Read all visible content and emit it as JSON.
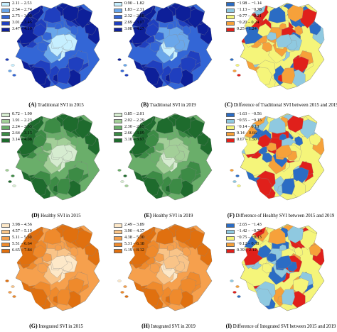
{
  "panels": [
    {
      "letter": "(A)",
      "caption": "Traditional SVI in 2015",
      "scheme": "blue",
      "legend": [
        "2.11 – 2.53",
        "2.54 – 2.74",
        "2.75 – 3.00",
        "3.01 – 3.46",
        "3.47 – 4.19"
      ],
      "colors": [
        "#c6efff",
        "#6aa7ea",
        "#3366d6",
        "#1f3fbf",
        "#0d1f99"
      ]
    },
    {
      "letter": "(B)",
      "caption": "Traditional SVI in 2019",
      "scheme": "blue",
      "legend": [
        "0.90 – 1.82",
        "1.83 – 2.31",
        "2.32 – 2.68",
        "2.69 – 3.07",
        "3.08 – 4.27"
      ],
      "colors": [
        "#c6efff",
        "#6aa7ea",
        "#3366d6",
        "#1f3fbf",
        "#0d1f99"
      ]
    },
    {
      "letter": "(C)",
      "caption": "Difference of Traditional SVI between 2015 and 2019",
      "scheme": "div",
      "legend": [
        "−1.98 – −1.14",
        "−1.13 – −0.78",
        "−0.77 – −0.21",
        "−0.20 – 0.24",
        "0.25 – 1.24"
      ],
      "colors": [
        "#2b6cc4",
        "#8fc9e0",
        "#f5f57a",
        "#f6a13a",
        "#e0201b"
      ]
    },
    {
      "letter": "(D)",
      "caption": "Healthy SVI in 2015",
      "scheme": "green",
      "legend": [
        "0.72 – 1.90",
        "1.91 – 2.23",
        "2.24 – 2.63",
        "2.64 – 3.13",
        "3.14 – 4.08"
      ],
      "colors": [
        "#d6ecd0",
        "#a3cf98",
        "#6aae6a",
        "#3c8b45",
        "#1e6b2d"
      ]
    },
    {
      "letter": "(E)",
      "caption": "Healthy SVI in 2019",
      "scheme": "green",
      "legend": [
        "0.85 – 2.01",
        "2.02 – 2.29",
        "2.30 – 2.65",
        "2.66 – 3.09",
        "3.10 – 3.97"
      ],
      "colors": [
        "#d6ecd0",
        "#a3cf98",
        "#6aae6a",
        "#3c8b45",
        "#1e6b2d"
      ]
    },
    {
      "letter": "(F)",
      "caption": "Difference of Healthy SVI between 2015 and 2019",
      "scheme": "div",
      "legend": [
        "−1.63 – −0.56",
        "−0.55 – −0.15",
        "−0.14 – 0.13",
        "0.14 – 0.66",
        "0.67 – 1.50"
      ],
      "colors": [
        "#2b6cc4",
        "#8fc9e0",
        "#f5f57a",
        "#f6a13a",
        "#e0201b"
      ]
    },
    {
      "letter": "(G)",
      "caption": "Integrated SVI in 2015",
      "scheme": "orange",
      "legend": [
        "3.98 – 4.56",
        "4.57 – 5.10",
        "5.11 – 5.50",
        "5.51 – 6.64",
        "6.65 – 7.84"
      ],
      "colors": [
        "#fde8c8",
        "#f9c488",
        "#f6a04d",
        "#ef8a2c",
        "#e0700f"
      ]
    },
    {
      "letter": "(H)",
      "caption": "Integrated SVI in 2019",
      "scheme": "orange",
      "legend": [
        "2.49 – 3.89",
        "3.90 – 4.37",
        "4.38 – 5.30",
        "5.31 – 6.18",
        "6.19 – 8.12"
      ],
      "colors": [
        "#fde8c8",
        "#f9c488",
        "#f6a04d",
        "#ef8a2c",
        "#e0700f"
      ]
    },
    {
      "letter": "(I)",
      "caption": "Difference of Integrated SVI between 2015 and 2019",
      "scheme": "div",
      "legend": [
        "−2.65 – −1.43",
        "−1.42 – −0.76",
        "−0.75 – −0.13",
        "−0.12 – 0.38",
        "0.39 – 2.12"
      ],
      "colors": [
        "#2b6cc4",
        "#8fc9e0",
        "#f5f57a",
        "#f6a13a",
        "#e0201b"
      ]
    }
  ]
}
